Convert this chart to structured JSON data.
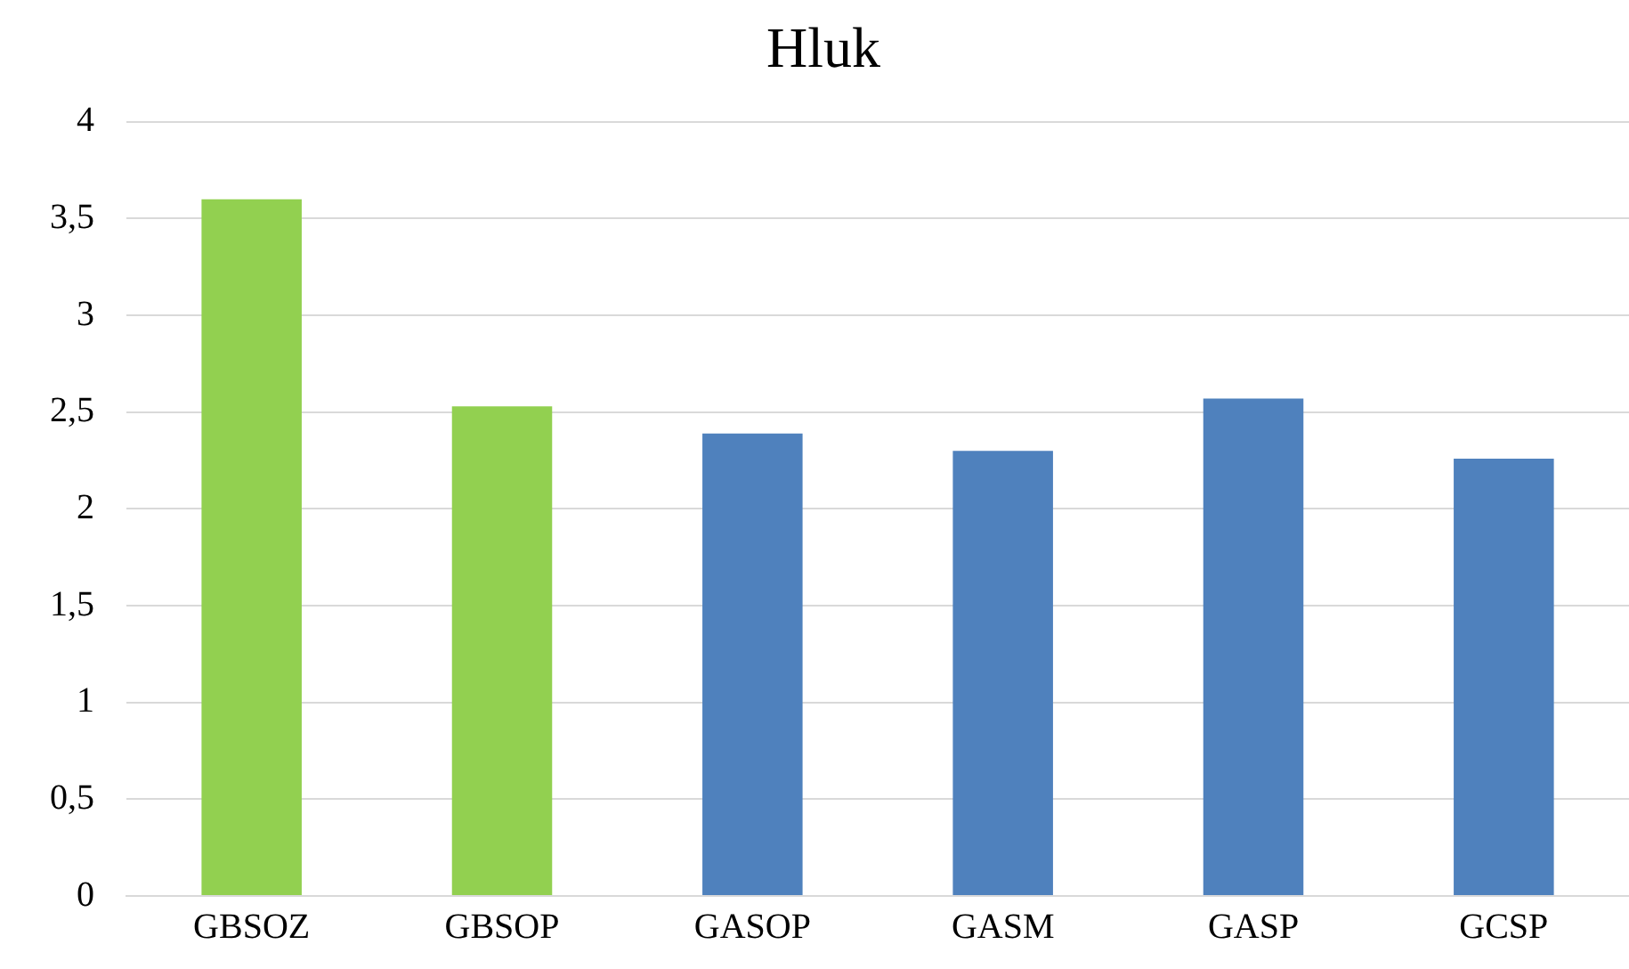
{
  "chart_data": {
    "type": "bar",
    "title": "Hluk",
    "categories": [
      "GBSOZ",
      "GBSOP",
      "GASOP",
      "GASM",
      "GASP",
      "GCSP"
    ],
    "values": [
      3.6,
      2.53,
      2.39,
      2.3,
      2.57,
      2.26
    ],
    "colors": [
      "#92d050",
      "#92d050",
      "#4f81bd",
      "#4f81bd",
      "#4f81bd",
      "#4f81bd"
    ],
    "ylim": [
      0,
      4
    ],
    "yticks": [
      0,
      {
        "value": 0.5,
        "label": "0,5"
      },
      1,
      {
        "value": 1.5,
        "label": "1,5"
      },
      2,
      {
        "value": 2.5,
        "label": "2,5"
      },
      3,
      {
        "value": 3.5,
        "label": "3,5"
      },
      4
    ],
    "grid": "y",
    "legend": false
  }
}
